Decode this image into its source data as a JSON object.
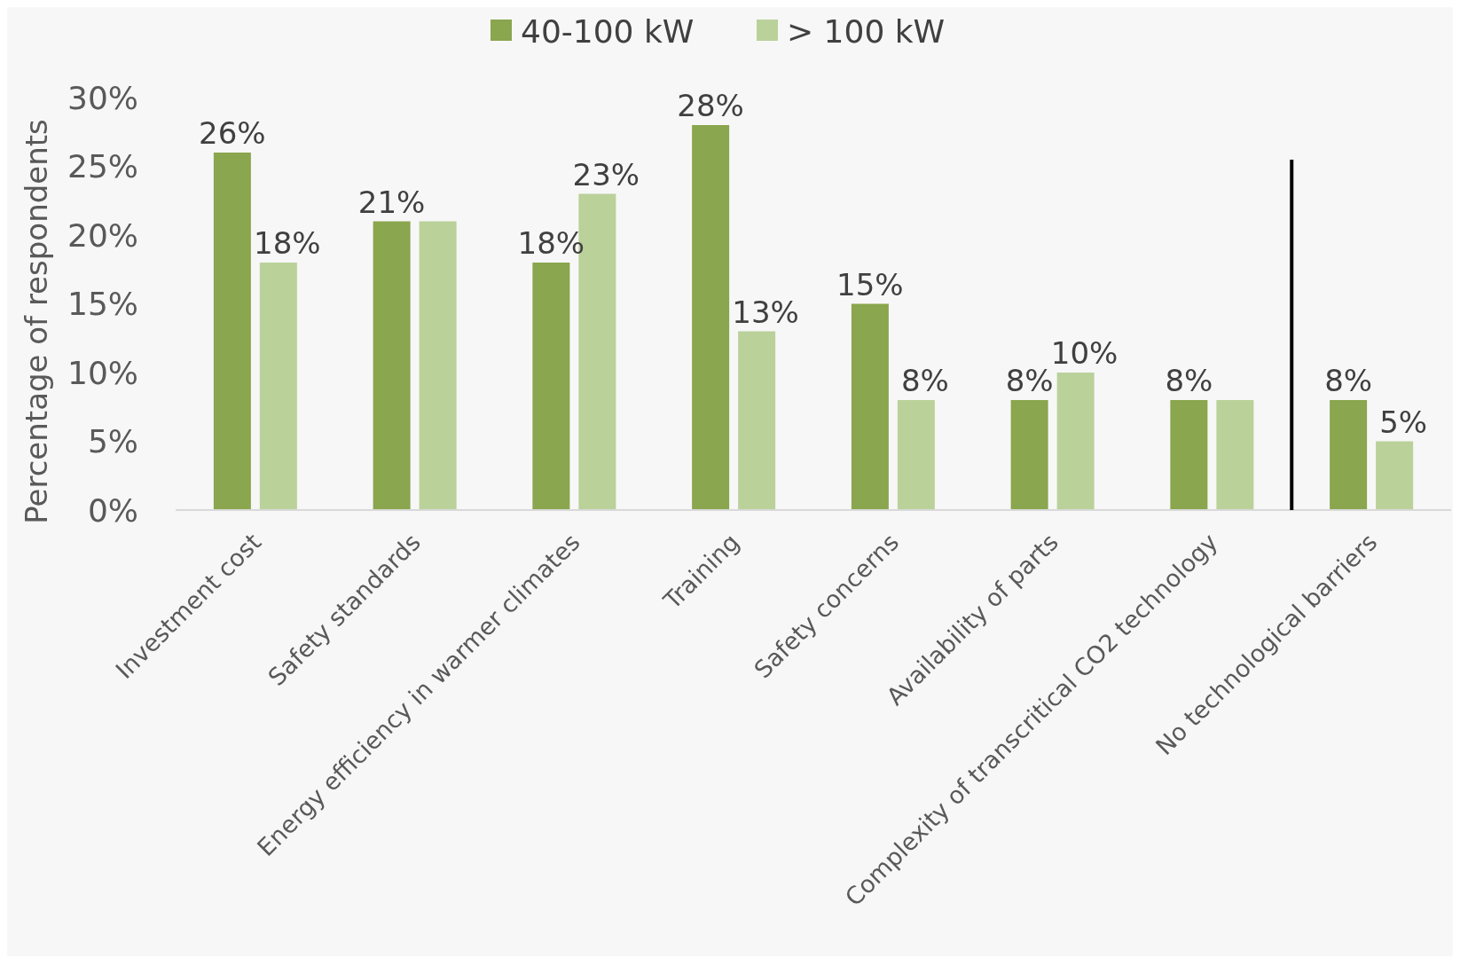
{
  "chart_data": {
    "type": "bar",
    "ylabel": "Percentage of respondents",
    "categories": [
      "Investment cost",
      "Safety standards",
      "Energy efficiency in warmer climates",
      "Training",
      "Safety concerns",
      "Availability of parts",
      "Complexity of transcritical CO2 technology",
      "No technological barriers"
    ],
    "series": [
      {
        "name": "40-100 kW",
        "color": "#8aa64e",
        "values": [
          26,
          21,
          18,
          28,
          15,
          8,
          8,
          8
        ],
        "value_labels": [
          "26%",
          "21%",
          "18%",
          "28%",
          "15%",
          "8%",
          "8%",
          "8%"
        ]
      },
      {
        "name": "> 100 kW",
        "color": "#bad19a",
        "values": [
          18,
          21,
          23,
          13,
          8,
          10,
          8,
          5
        ],
        "value_labels": [
          "18%",
          null,
          "23%",
          "13%",
          "8%",
          "10%",
          null,
          "5%"
        ]
      }
    ],
    "ylim": [
      0,
      30
    ],
    "yticks": [
      {
        "value": 0,
        "label": "0%"
      },
      {
        "value": 5,
        "label": "5%"
      },
      {
        "value": 10,
        "label": "10%"
      },
      {
        "value": 15,
        "label": "15%"
      },
      {
        "value": 20,
        "label": "20%"
      },
      {
        "value": 25,
        "label": "25%"
      },
      {
        "value": 30,
        "label": "30%"
      }
    ],
    "grid": false,
    "legend": "top"
  }
}
